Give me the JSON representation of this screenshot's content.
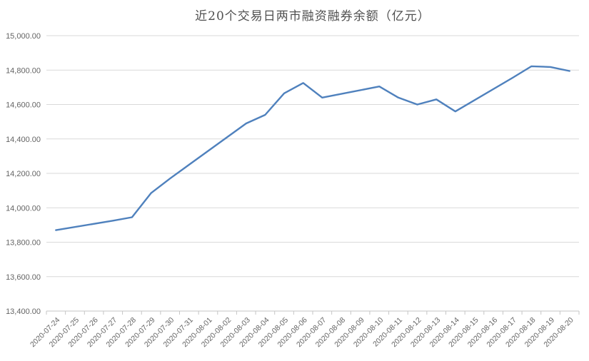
{
  "page": {
    "background_color": "#ffffff"
  },
  "chart_data": {
    "type": "line",
    "title": "近20个交易日两市融资融券余额（亿元）",
    "xlabel": "",
    "ylabel": "",
    "legend": "none",
    "grid": "horizontal",
    "x": [
      "2020-07-24",
      "2020-07-25",
      "2020-07-26",
      "2020-07-27",
      "2020-07-28",
      "2020-07-29",
      "2020-07-30",
      "2020-07-31",
      "2020-08-01",
      "2020-08-02",
      "2020-08-03",
      "2020-08-04",
      "2020-08-05",
      "2020-08-06",
      "2020-08-07",
      "2020-08-08",
      "2020-08-09",
      "2020-08-10",
      "2020-08-11",
      "2020-08-12",
      "2020-08-13",
      "2020-08-14",
      "2020-08-15",
      "2020-08-16",
      "2020-08-17",
      "2020-08-18",
      "2020-08-19",
      "2020-08-20"
    ],
    "values": [
      13870,
      null,
      null,
      13925,
      13945,
      14085,
      14170,
      14250,
      null,
      null,
      14490,
      14540,
      14665,
      14725,
      14640,
      null,
      null,
      14705,
      14640,
      14600,
      14630,
      14560,
      null,
      null,
      14755,
      14822,
      14818,
      14795
    ],
    "ylim": [
      13400,
      15000
    ],
    "ytick_values": [
      13400,
      13600,
      13800,
      14000,
      14200,
      14400,
      14600,
      14800,
      15000
    ],
    "ytick_labels": [
      "13,400.00",
      "13,600.00",
      "13,800.00",
      "14,000.00",
      "14,200.00",
      "14,400.00",
      "14,600.00",
      "14,800.00",
      "15,000.00"
    ],
    "line_color": "#4f81bd",
    "gridline_color": "#d9d9d9",
    "axis_line_color": "#c6c6c6",
    "axis_text_color": "#646464",
    "title_color": "#4f4f4f"
  }
}
